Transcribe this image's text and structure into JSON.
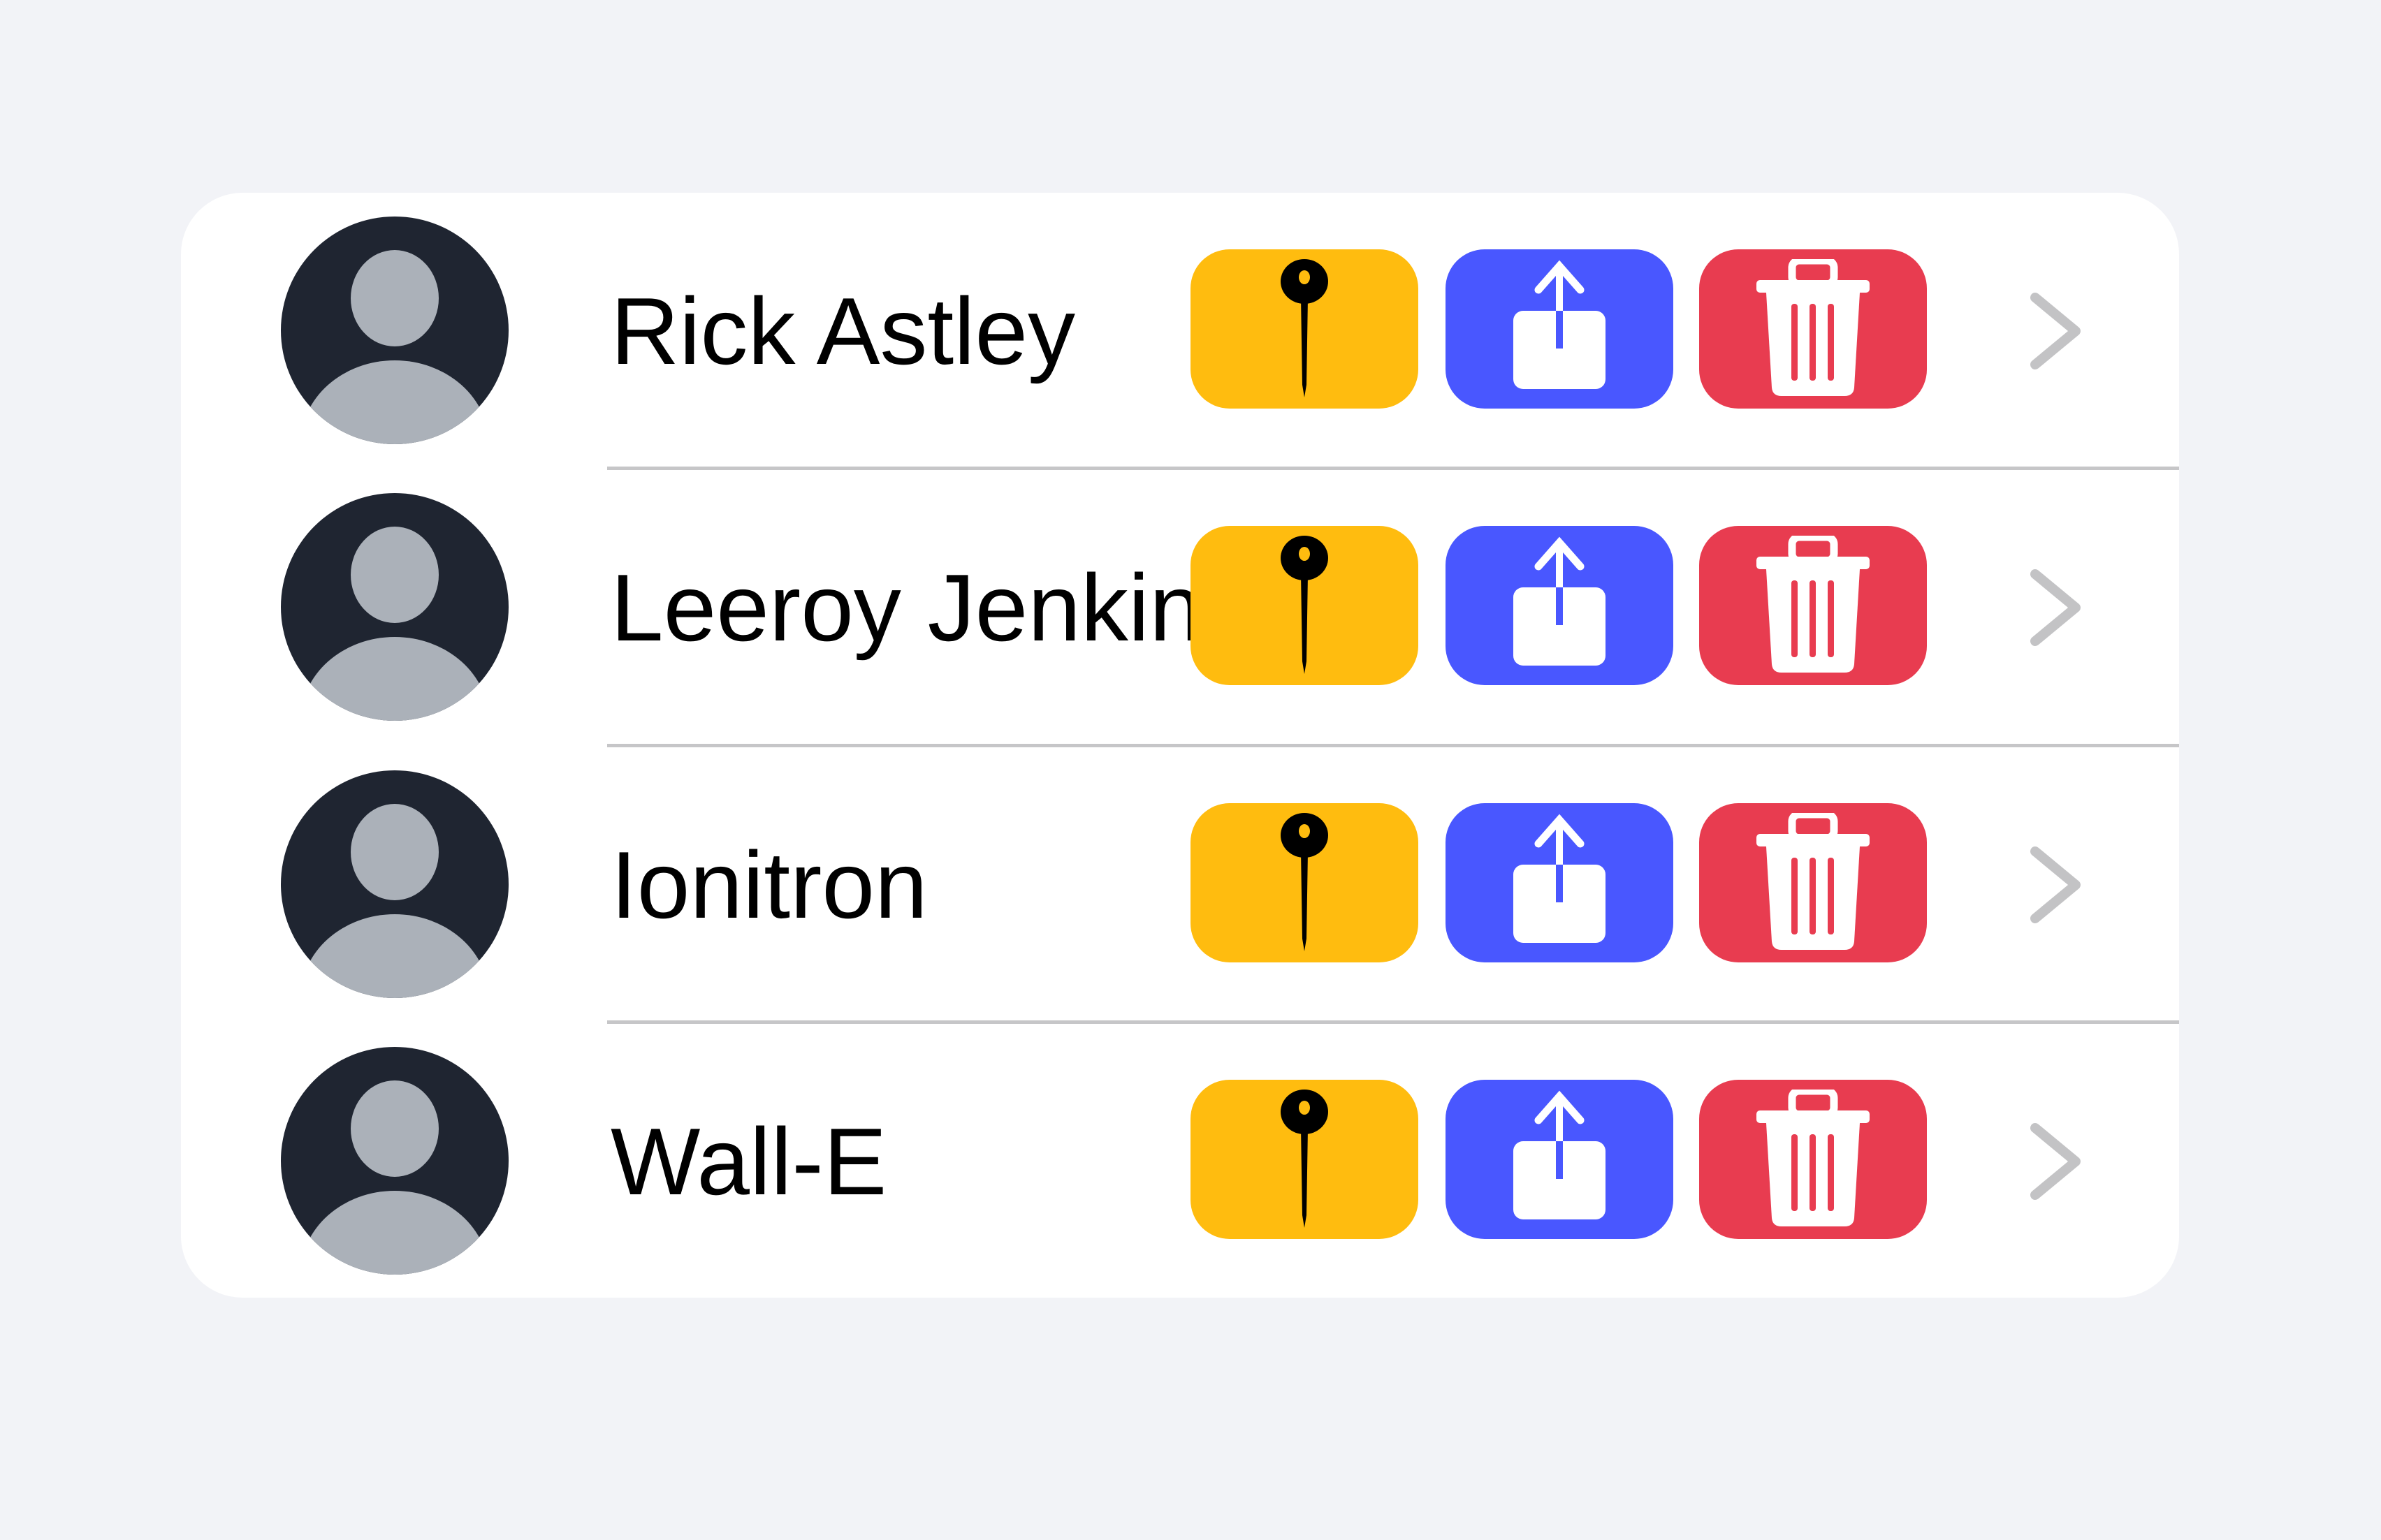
{
  "colors": {
    "background": "#f2f3f7",
    "pin": "#ffbc0f",
    "share": "#4957ff",
    "delete": "#e83c50",
    "avatar": "#1f2531",
    "separator": "#c6c6c8"
  },
  "contacts": [
    {
      "name": "Rick Astley"
    },
    {
      "name": "Leeroy Jenkins"
    },
    {
      "name": "Ionitron"
    },
    {
      "name": "Wall-E"
    }
  ],
  "icons": {
    "avatar": "person-icon",
    "pin": "pin-icon",
    "share": "share-icon",
    "delete": "trash-icon",
    "disclosure": "chevron-right-icon"
  }
}
